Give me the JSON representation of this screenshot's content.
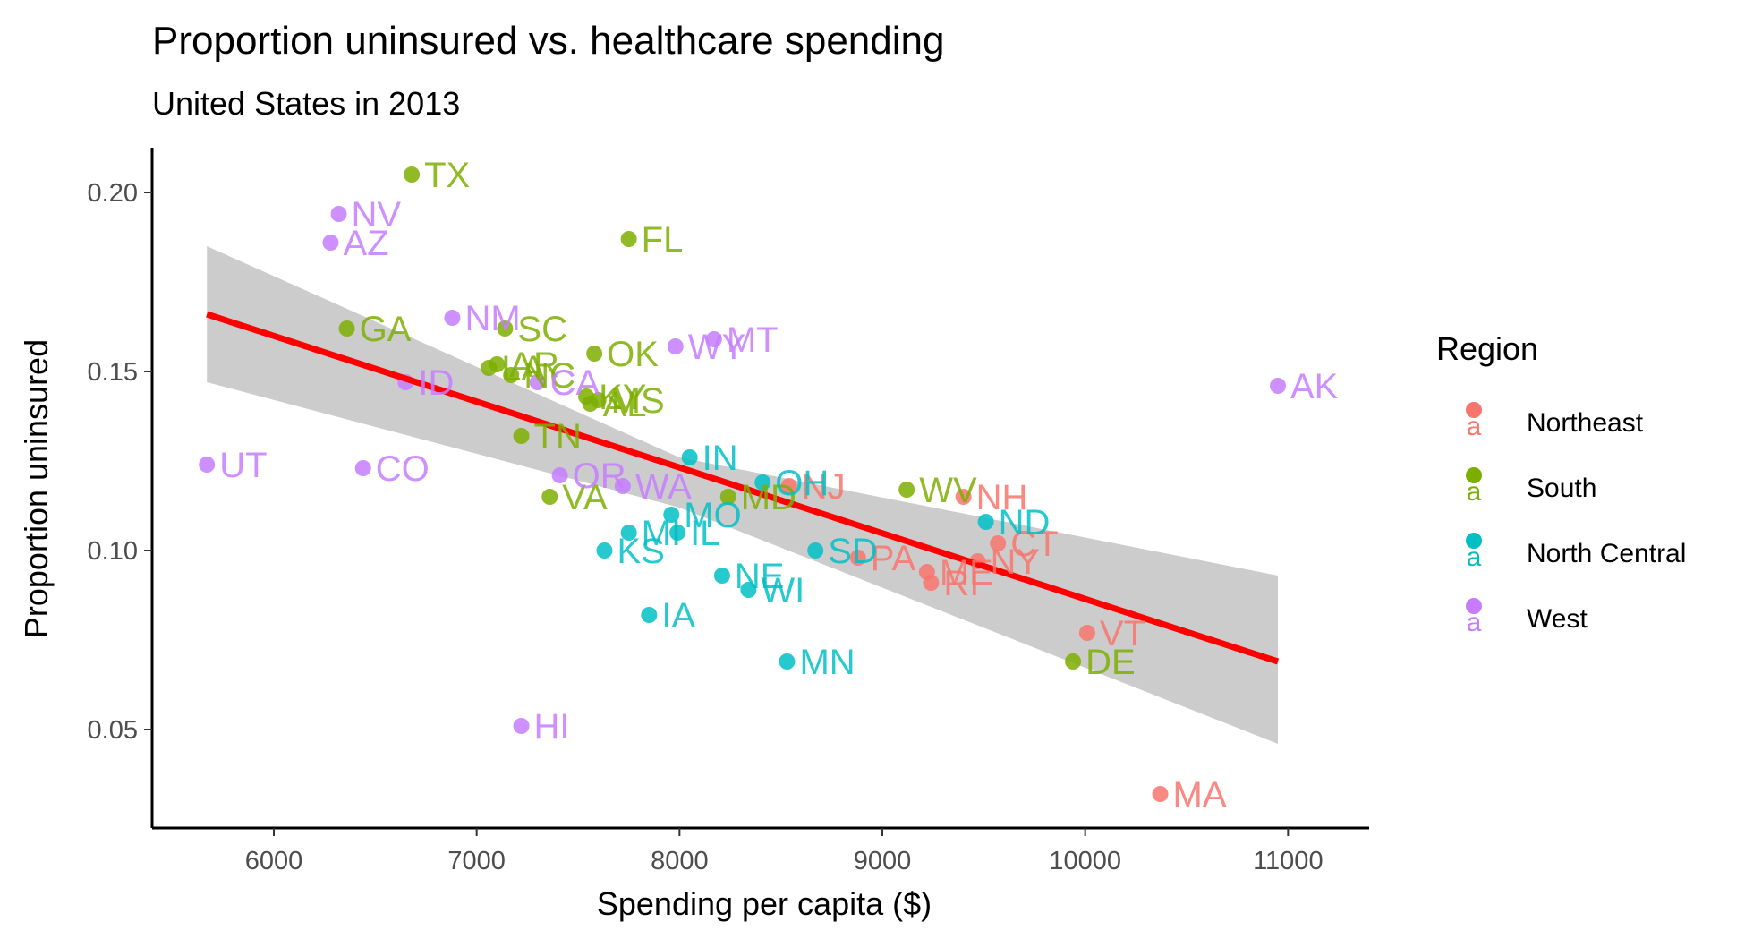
{
  "chart_data": {
    "type": "scatter",
    "title": "Proportion uninsured vs. healthcare spending",
    "subtitle": "United States in 2013",
    "xlabel": "Spending per capita ($)",
    "ylabel": "Proportion uninsured",
    "xlim": [
      5400,
      11400
    ],
    "ylim": [
      0.0225,
      0.2125
    ],
    "xticks": [
      6000,
      7000,
      8000,
      9000,
      10000,
      11000
    ],
    "yticks": [
      0.05,
      0.1,
      0.15,
      0.2
    ],
    "ytick_labels": [
      "0.05",
      "0.10",
      "0.15",
      "0.20"
    ],
    "grid": false,
    "legend": {
      "title": "Region",
      "placement": "right",
      "key_glyph": "a",
      "items": [
        {
          "name": "Northeast",
          "color": "#F8766D"
        },
        {
          "name": "South",
          "color": "#7CAE00"
        },
        {
          "name": "North Central",
          "color": "#00BFC4"
        },
        {
          "name": "West",
          "color": "#C77CFF"
        }
      ]
    },
    "trend": {
      "method": "linear",
      "color": "#FF0000",
      "band_color": "#CCCCCC",
      "line": [
        [
          5670,
          0.166
        ],
        [
          10950,
          0.069
        ]
      ],
      "band_upper": [
        [
          5670,
          0.185
        ],
        [
          8000,
          0.126
        ],
        [
          10950,
          0.093
        ]
      ],
      "band_lower": [
        [
          5670,
          0.147
        ],
        [
          8000,
          0.112
        ],
        [
          10950,
          0.046
        ]
      ]
    },
    "points": [
      {
        "label": "MA",
        "x": 10370,
        "y": 0.032,
        "region": "Northeast"
      },
      {
        "label": "VT",
        "x": 10010,
        "y": 0.077,
        "region": "Northeast"
      },
      {
        "label": "CT",
        "x": 9570,
        "y": 0.102,
        "region": "Northeast"
      },
      {
        "label": "NY",
        "x": 9470,
        "y": 0.097,
        "region": "Northeast"
      },
      {
        "label": "NH",
        "x": 9400,
        "y": 0.115,
        "region": "Northeast"
      },
      {
        "label": "ME",
        "x": 9220,
        "y": 0.094,
        "region": "Northeast"
      },
      {
        "label": "RI",
        "x": 9240,
        "y": 0.091,
        "region": "Northeast"
      },
      {
        "label": "PA",
        "x": 8880,
        "y": 0.098,
        "region": "Northeast"
      },
      {
        "label": "NJ",
        "x": 8540,
        "y": 0.118,
        "region": "Northeast"
      },
      {
        "label": "TX",
        "x": 6680,
        "y": 0.205,
        "region": "South"
      },
      {
        "label": "FL",
        "x": 7750,
        "y": 0.187,
        "region": "South"
      },
      {
        "label": "GA",
        "x": 6360,
        "y": 0.162,
        "region": "South"
      },
      {
        "label": "SC",
        "x": 7140,
        "y": 0.162,
        "region": "South"
      },
      {
        "label": "OK",
        "x": 7580,
        "y": 0.155,
        "region": "South"
      },
      {
        "label": "AR",
        "x": 7100,
        "y": 0.152,
        "region": "South"
      },
      {
        "label": "LA",
        "x": 7060,
        "y": 0.151,
        "region": "South"
      },
      {
        "label": "NC",
        "x": 7170,
        "y": 0.149,
        "region": "South"
      },
      {
        "label": "KY",
        "x": 7540,
        "y": 0.143,
        "region": "South"
      },
      {
        "label": "MS",
        "x": 7600,
        "y": 0.142,
        "region": "South"
      },
      {
        "label": "AL",
        "x": 7560,
        "y": 0.141,
        "region": "South"
      },
      {
        "label": "TN",
        "x": 7220,
        "y": 0.132,
        "region": "South"
      },
      {
        "label": "VA",
        "x": 7360,
        "y": 0.115,
        "region": "South"
      },
      {
        "label": "MD",
        "x": 8240,
        "y": 0.115,
        "region": "South"
      },
      {
        "label": "WV",
        "x": 9120,
        "y": 0.117,
        "region": "South"
      },
      {
        "label": "DE",
        "x": 9940,
        "y": 0.069,
        "region": "South"
      },
      {
        "label": "IN",
        "x": 8050,
        "y": 0.126,
        "region": "North Central"
      },
      {
        "label": "OH",
        "x": 8410,
        "y": 0.119,
        "region": "North Central"
      },
      {
        "label": "MO",
        "x": 7960,
        "y": 0.11,
        "region": "North Central"
      },
      {
        "label": "MI",
        "x": 7750,
        "y": 0.105,
        "region": "North Central"
      },
      {
        "label": "IL",
        "x": 7990,
        "y": 0.105,
        "region": "North Central"
      },
      {
        "label": "KS",
        "x": 7630,
        "y": 0.1,
        "region": "North Central"
      },
      {
        "label": "SD",
        "x": 8670,
        "y": 0.1,
        "region": "North Central"
      },
      {
        "label": "ND",
        "x": 9510,
        "y": 0.108,
        "region": "North Central"
      },
      {
        "label": "NE",
        "x": 8210,
        "y": 0.093,
        "region": "North Central"
      },
      {
        "label": "WI",
        "x": 8340,
        "y": 0.089,
        "region": "North Central"
      },
      {
        "label": "IA",
        "x": 7850,
        "y": 0.082,
        "region": "North Central"
      },
      {
        "label": "MN",
        "x": 8530,
        "y": 0.069,
        "region": "North Central"
      },
      {
        "label": "NV",
        "x": 6320,
        "y": 0.194,
        "region": "West"
      },
      {
        "label": "AZ",
        "x": 6280,
        "y": 0.186,
        "region": "West"
      },
      {
        "label": "NM",
        "x": 6880,
        "y": 0.165,
        "region": "West"
      },
      {
        "label": "WY",
        "x": 7980,
        "y": 0.157,
        "region": "West"
      },
      {
        "label": "MT",
        "x": 8170,
        "y": 0.159,
        "region": "West"
      },
      {
        "label": "ID",
        "x": 6650,
        "y": 0.147,
        "region": "West"
      },
      {
        "label": "CA",
        "x": 7300,
        "y": 0.147,
        "region": "West"
      },
      {
        "label": "AK",
        "x": 10950,
        "y": 0.146,
        "region": "West"
      },
      {
        "label": "UT",
        "x": 5670,
        "y": 0.124,
        "region": "West"
      },
      {
        "label": "CO",
        "x": 6440,
        "y": 0.123,
        "region": "West"
      },
      {
        "label": "OR",
        "x": 7410,
        "y": 0.121,
        "region": "West"
      },
      {
        "label": "WA",
        "x": 7720,
        "y": 0.118,
        "region": "West"
      },
      {
        "label": "HI",
        "x": 7220,
        "y": 0.051,
        "region": "West"
      }
    ]
  }
}
